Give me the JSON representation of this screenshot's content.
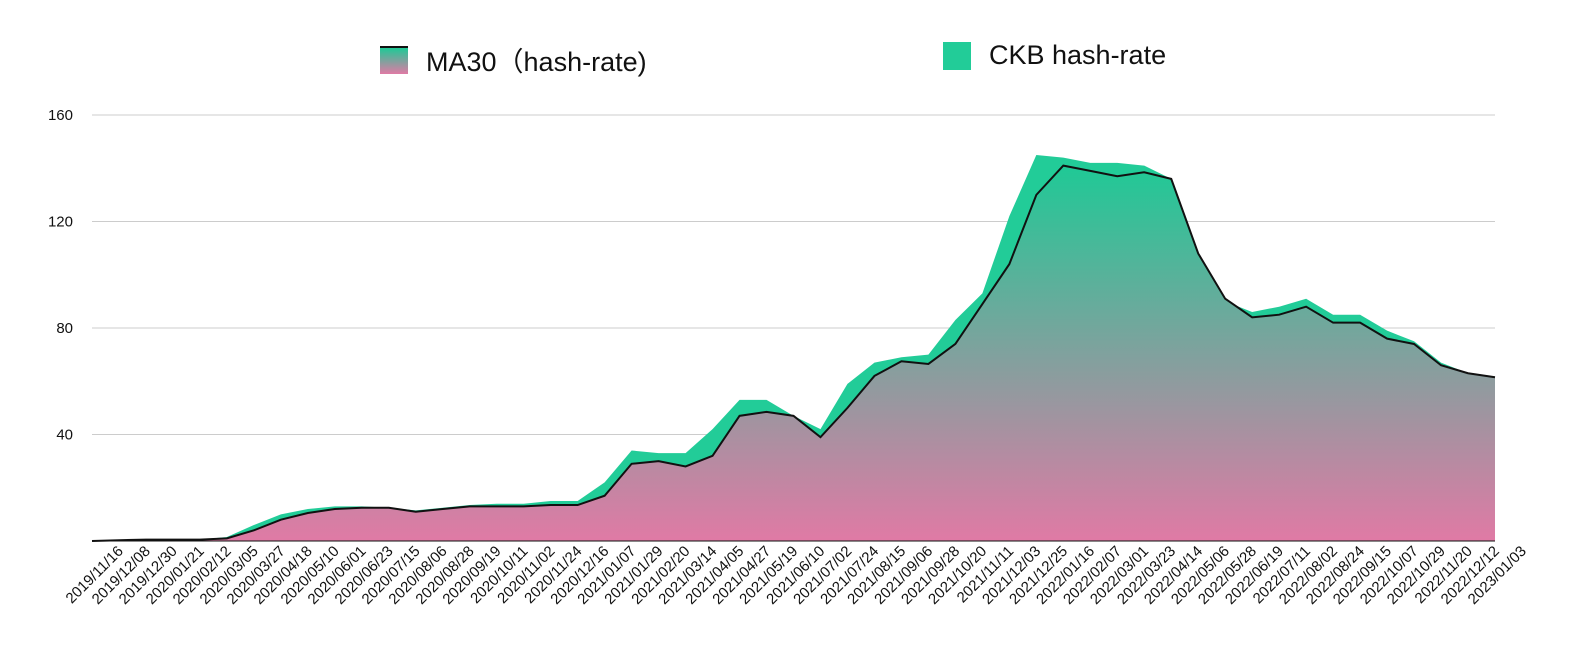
{
  "colors": {
    "ckb_fill": "#22cc98",
    "ma_gradient_top": "#1fc996",
    "ma_gradient_bottom": "#e07aa5",
    "ma_line": "#111111",
    "grid": "#cccccc"
  },
  "chart_data": {
    "type": "area",
    "title": "",
    "xlabel": "",
    "ylabel": "",
    "ylim": [
      0,
      160
    ],
    "yticks": [
      40,
      80,
      120,
      160
    ],
    "grid": true,
    "legend_placement": "top",
    "legend": [
      {
        "label": "MA30（hash-rate)",
        "key": "ma30"
      },
      {
        "label": "CKB hash-rate",
        "key": "ckb"
      }
    ],
    "x_tick_labels": [
      "2019/11/16",
      "2019/12/08",
      "2019/12/30",
      "2020/01/21",
      "2020/02/12",
      "2020/03/05",
      "2020/03/27",
      "2020/04/18",
      "2020/05/10",
      "2020/06/01",
      "2020/06/23",
      "2020/07/15",
      "2020/08/06",
      "2020/08/28",
      "2020/09/19",
      "2020/10/11",
      "2020/11/02",
      "2020/11/24",
      "2020/12/16",
      "2021/01/07",
      "2021/01/29",
      "2021/02/20",
      "2021/03/14",
      "2021/04/05",
      "2021/04/27",
      "2021/05/19",
      "2021/06/10",
      "2021/07/02",
      "2021/07/24",
      "2021/08/15",
      "2021/09/06",
      "2021/09/28",
      "2021/10/20",
      "2021/11/11",
      "2021/12/03",
      "2021/12/25",
      "2022/01/16",
      "2022/02/07",
      "2022/03/01",
      "2022/03/23",
      "2022/04/14",
      "2022/05/06",
      "2022/05/28",
      "2022/06/19",
      "2022/07/11",
      "2022/08/02",
      "2022/08/24",
      "2022/09/15",
      "2022/10/07",
      "2022/10/29",
      "2022/11/20",
      "2022/12/12",
      "2023/01/03"
    ],
    "series": [
      {
        "name": "MA30（hash-rate)",
        "x": [
          "2019/11/16",
          "2019/12/08",
          "2019/12/30",
          "2020/01/21",
          "2020/02/12",
          "2020/03/05",
          "2020/03/27",
          "2020/04/18",
          "2020/05/10",
          "2020/06/01",
          "2020/06/23",
          "2020/07/15",
          "2020/08/06",
          "2020/08/28",
          "2020/09/19",
          "2020/10/11",
          "2020/11/02",
          "2020/11/24",
          "2020/12/16",
          "2021/01/07",
          "2021/01/29",
          "2021/02/20",
          "2021/03/14",
          "2021/04/05",
          "2021/04/27",
          "2021/05/19",
          "2021/06/10",
          "2021/07/02",
          "2021/07/24",
          "2021/08/15",
          "2021/09/06",
          "2021/09/28",
          "2021/10/20",
          "2021/11/11",
          "2021/12/03",
          "2021/12/25",
          "2022/01/16",
          "2022/02/07",
          "2022/03/01",
          "2022/03/23",
          "2022/04/14",
          "2022/05/06",
          "2022/05/28",
          "2022/06/19",
          "2022/07/11",
          "2022/08/02",
          "2022/08/24",
          "2022/09/15",
          "2022/10/07",
          "2022/10/29",
          "2022/11/20",
          "2022/12/12",
          "2023/01/03"
        ],
        "values": [
          0,
          0.3,
          0.5,
          0.5,
          0.5,
          1,
          4,
          8,
          10.5,
          12,
          12.5,
          12.5,
          11,
          12,
          13,
          13,
          13,
          13.5,
          13.5,
          17,
          29,
          30,
          28,
          32,
          47,
          48.5,
          47,
          39,
          50,
          62,
          67.5,
          66.5,
          74,
          89,
          104,
          130,
          141,
          139,
          137,
          138.5,
          136,
          108,
          91,
          84,
          85,
          88,
          82,
          82,
          76,
          74,
          66,
          63,
          61.5
        ]
      },
      {
        "name": "CKB hash-rate",
        "x": [
          "2019/11/16",
          "2019/12/08",
          "2019/12/30",
          "2020/01/21",
          "2020/02/12",
          "2020/03/05",
          "2020/03/27",
          "2020/04/18",
          "2020/05/10",
          "2020/06/01",
          "2020/06/23",
          "2020/07/15",
          "2020/08/06",
          "2020/08/28",
          "2020/09/19",
          "2020/10/11",
          "2020/11/02",
          "2020/11/24",
          "2020/12/16",
          "2021/01/07",
          "2021/01/29",
          "2021/02/20",
          "2021/03/14",
          "2021/04/05",
          "2021/04/27",
          "2021/05/19",
          "2021/06/10",
          "2021/07/02",
          "2021/07/24",
          "2021/08/15",
          "2021/09/06",
          "2021/09/28",
          "2021/10/20",
          "2021/11/11",
          "2021/12/03",
          "2021/12/25",
          "2022/01/16",
          "2022/02/07",
          "2022/03/01",
          "2022/03/23",
          "2022/04/14",
          "2022/05/06",
          "2022/05/28",
          "2022/06/19",
          "2022/07/11",
          "2022/08/02",
          "2022/08/24",
          "2022/09/15",
          "2022/10/07",
          "2022/10/29",
          "2022/11/20",
          "2022/12/12",
          "2023/01/03"
        ],
        "values": [
          0,
          0.3,
          0.5,
          0.5,
          0.5,
          1.5,
          6,
          10,
          12,
          13,
          13,
          12.5,
          11.5,
          12.5,
          13.5,
          14,
          14,
          15,
          15,
          22,
          34,
          33,
          33,
          42,
          53,
          53,
          47,
          42,
          59,
          67,
          69,
          70,
          83,
          93,
          122,
          145,
          144,
          142,
          142,
          141,
          136,
          107,
          90,
          86,
          88,
          91,
          85,
          85,
          79,
          75,
          67,
          63,
          61.5
        ]
      }
    ]
  }
}
